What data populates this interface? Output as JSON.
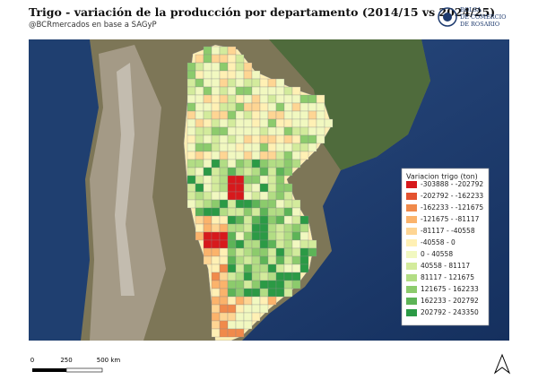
{
  "header": {
    "title": "Trigo - variación de la producción por departamento (2014/15 vs 2024/25)",
    "subtitle": "@BCRmercados en base a SAGyP",
    "logo": [
      "BOLSA",
      "DE COMERCIO",
      "DE ROSARIO"
    ]
  },
  "legend": {
    "title": "Variacion trigo (ton)",
    "items": [
      {
        "label": "-303888 - -202792",
        "color": "#d7191c"
      },
      {
        "label": "-202792 - -162233",
        "color": "#e4522f"
      },
      {
        "label": "-162233 - -121675",
        "color": "#f08a4b"
      },
      {
        "label": "-121675 - -81117",
        "color": "#fbb36b"
      },
      {
        "label": "-81117 - -40558",
        "color": "#fed593"
      },
      {
        "label": "-40558 - 0",
        "color": "#fff0b4"
      },
      {
        "label": "0 - 40558",
        "color": "#f1f8c0"
      },
      {
        "label": "40558 - 81117",
        "color": "#d3eb9c"
      },
      {
        "label": "81117 - 121675",
        "color": "#b2dd84"
      },
      {
        "label": "121675 - 162233",
        "color": "#8ccb6c"
      },
      {
        "label": "162233 - 202792",
        "color": "#5db457"
      },
      {
        "label": "202792 - 243350",
        "color": "#2b9a45"
      }
    ]
  },
  "scale_bar": {
    "labels": [
      "0",
      "250",
      "500 km"
    ]
  }
}
